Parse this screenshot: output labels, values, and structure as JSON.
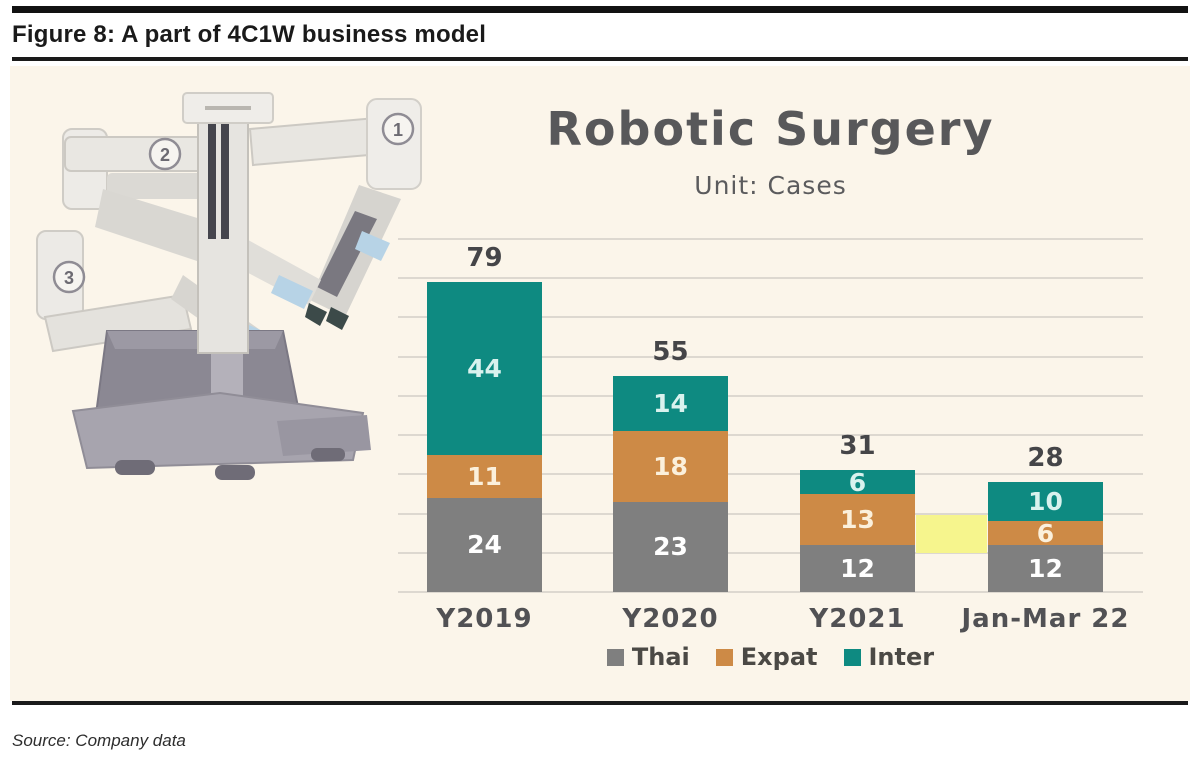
{
  "figure": {
    "title": "Figure 8: A part of 4C1W business model",
    "source": "Source: Company data"
  },
  "chart_data": {
    "type": "bar",
    "stacked": true,
    "title": "Robotic Surgery",
    "subtitle": "Unit: Cases",
    "categories": [
      "Y2019",
      "Y2020",
      "Y2021",
      "Jan-Mar 22"
    ],
    "series": [
      {
        "name": "Thai",
        "color": "#7f7f7f",
        "label_color": "#ffffff",
        "values": [
          24,
          23,
          12,
          12
        ]
      },
      {
        "name": "Expat",
        "color": "#cd8a46",
        "label_color": "#fbf0dc",
        "values": [
          11,
          18,
          13,
          6
        ]
      },
      {
        "name": "Inter",
        "color": "#0e8a81",
        "label_color": "#d9f2ee",
        "values": [
          44,
          14,
          6,
          10
        ]
      }
    ],
    "totals": [
      79,
      55,
      31,
      28
    ],
    "ylim": [
      0,
      90
    ],
    "gridline_step": 10,
    "grid": true,
    "legend_position": "bottom",
    "annotation": {
      "type": "highlight-band",
      "color": "#f6f58d",
      "between_categories": [
        "Y2021",
        "Jan-Mar 22"
      ],
      "value_range": [
        10,
        19.7
      ]
    }
  },
  "robot_image": {
    "name": "surgical-robot",
    "arm_labels": [
      "1",
      "2",
      "3"
    ]
  },
  "colors": {
    "panel_background": "#fbf5ea",
    "gridline": "#ddd8d0",
    "rule": "#1a1a1a",
    "chart_title": "#58585a"
  }
}
